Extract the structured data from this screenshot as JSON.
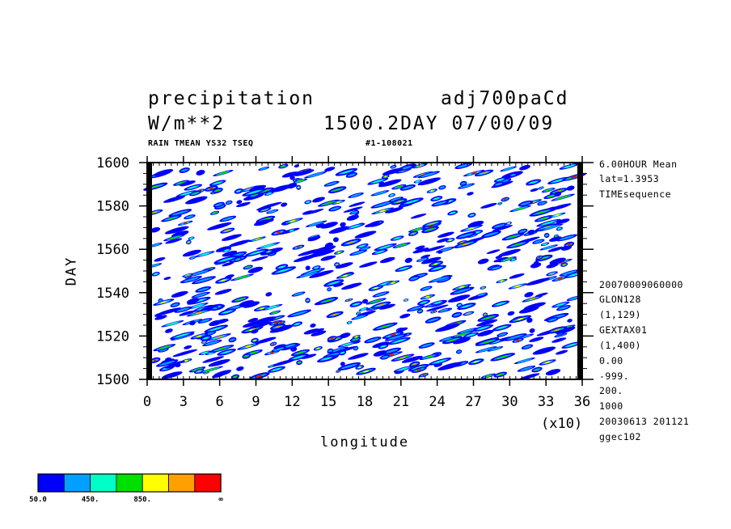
{
  "header": {
    "title_left": "precipitation",
    "title_right": "adj700paCd",
    "units": "W/m**2",
    "time_info": "1500.2DAY 07/00/09",
    "subtitle_left": "RAIN TMEAN YS32 TSEQ",
    "subtitle_right": "#1-108021"
  },
  "side_info": {
    "top": [
      "6.00HOUR Mean",
      "lat=1.3953",
      "TIMEsequence"
    ],
    "bottom": [
      "20070009060000",
      "GLON128",
      "(1,129)",
      "GEXTAX01",
      "(1,400)",
      "0.00",
      "-999.",
      "200.",
      "1000",
      "20030613 201121",
      "ggec102"
    ]
  },
  "chart_data": {
    "type": "heatmap",
    "xlabel": "longitude",
    "ylabel": "DAY",
    "x_multiplier": "(x10)",
    "xlim": [
      0,
      36
    ],
    "ylim": [
      1500,
      1600
    ],
    "x_ticks": [
      0,
      3,
      6,
      9,
      12,
      15,
      18,
      21,
      24,
      27,
      30,
      33,
      36
    ],
    "y_ticks": [
      1500,
      1520,
      1540,
      1560,
      1580,
      1600
    ],
    "colorbar": {
      "colors": [
        "#0000ff",
        "#00a0ff",
        "#00ffc8",
        "#00e000",
        "#ffff00",
        "#ffa000",
        "#ff0000"
      ],
      "labels": [
        "50.0",
        "450.",
        "850.",
        "∞"
      ]
    }
  }
}
